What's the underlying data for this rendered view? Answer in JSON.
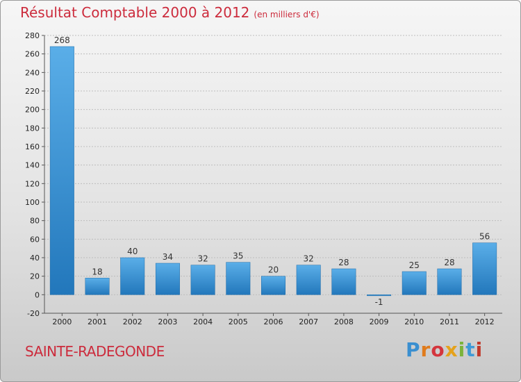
{
  "chart_data": {
    "type": "bar",
    "title": "Résultat Comptable 2000 à 2012",
    "subtitle": "(en milliers d'€)",
    "categories": [
      "2000",
      "2001",
      "2002",
      "2003",
      "2004",
      "2005",
      "2006",
      "2007",
      "2008",
      "2009",
      "2010",
      "2011",
      "2012"
    ],
    "values": [
      268,
      18,
      40,
      34,
      32,
      35,
      20,
      32,
      28,
      -1,
      25,
      28,
      56
    ],
    "value_labels": [
      "268",
      "18",
      "40",
      "34",
      "32",
      "35",
      "20",
      "32",
      "28",
      "-1",
      "25",
      "28",
      "56"
    ],
    "ylim": [
      -20,
      280
    ],
    "yticks": [
      -20,
      0,
      20,
      40,
      60,
      80,
      100,
      120,
      140,
      160,
      180,
      200,
      220,
      240,
      260,
      280
    ],
    "xlabel": "",
    "ylabel": "",
    "grid": "horizontal dashed",
    "bar_color_top": "#5aaee8",
    "bar_color_bottom": "#2277bb"
  },
  "footer": {
    "commune": "SAINTE-RADEGONDE",
    "logo": [
      "P",
      "r",
      "o",
      "x",
      "i",
      "t",
      "i"
    ]
  }
}
